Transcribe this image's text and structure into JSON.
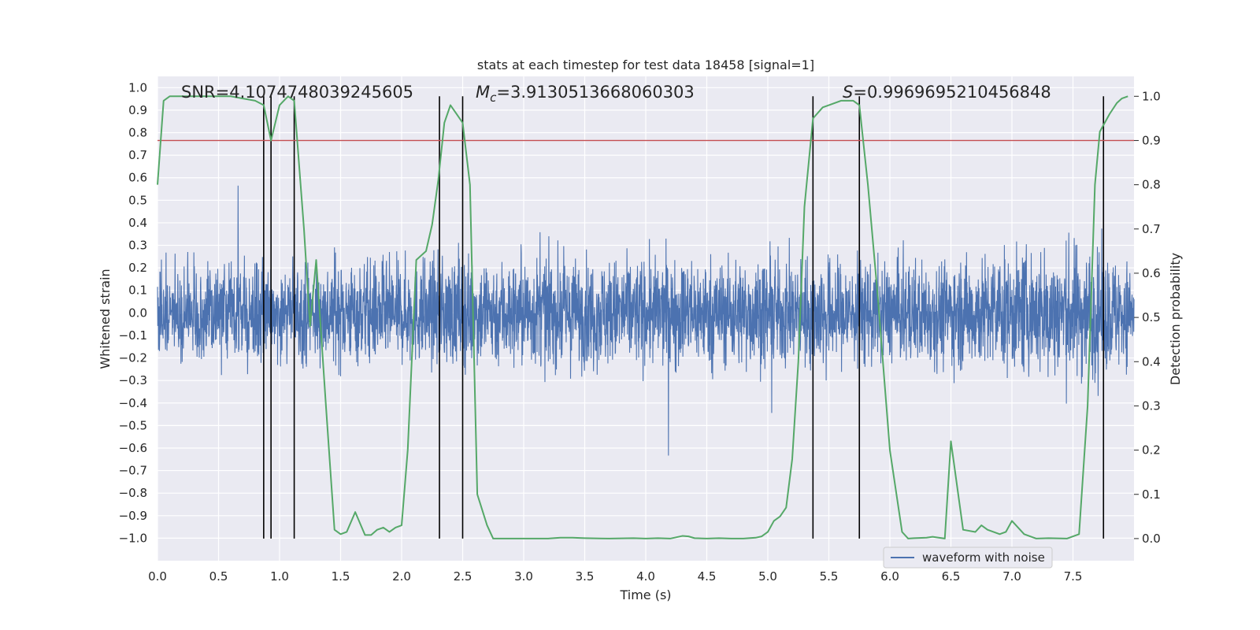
{
  "chart_data": {
    "type": "line",
    "title": "stats at each timestep for test data 18458 [signal=1]",
    "xlabel": "Time (s)",
    "ylabel": "Whitened strain",
    "y2label": "Detection probability",
    "xlim": [
      0.0,
      8.0
    ],
    "ylim": [
      -1.1,
      1.05
    ],
    "y2lim": [
      -0.05,
      1.045
    ],
    "x_ticks": [
      "0.0",
      "0.5",
      "1.0",
      "1.5",
      "2.0",
      "2.5",
      "3.0",
      "3.5",
      "4.0",
      "4.5",
      "5.0",
      "5.5",
      "6.0",
      "6.5",
      "7.0",
      "7.5"
    ],
    "y_ticks": [
      "1.0",
      "0.9",
      "0.8",
      "0.7",
      "0.6",
      "0.5",
      "0.4",
      "0.3",
      "0.2",
      "0.1",
      "0.0",
      "−0.1",
      "−0.2",
      "−0.3",
      "−0.4",
      "−0.5",
      "−0.6",
      "−0.7",
      "−0.8",
      "−0.9",
      "−1.0"
    ],
    "y2_ticks": [
      "1.0",
      "0.9",
      "0.8",
      "0.7",
      "0.6",
      "0.5",
      "0.4",
      "0.3",
      "0.2",
      "0.1",
      "0.0"
    ],
    "annotations": {
      "snr": "SNR=4.1074748039245605",
      "mc_symbol": "M",
      "mc_sub": "c",
      "mc_value": "=3.9130513668060303",
      "s_symbol": "S",
      "s_value": "=0.9969695210456848"
    },
    "legend": {
      "label": "waveform with noise",
      "placement": "lower-right"
    },
    "colors": {
      "waveform": "#4c72b0",
      "probability": "#55a868",
      "threshold": "#c44e52",
      "vlines": "#000000",
      "background": "#eaeaf2",
      "grid": "#ffffff"
    },
    "threshold": 0.9,
    "vlines": [
      0.87,
      0.93,
      1.12,
      2.31,
      2.5,
      5.37,
      5.75,
      7.75
    ],
    "waveform_envelope": {
      "x": [
        0.0,
        0.5,
        1.0,
        1.5,
        2.0,
        2.5,
        3.0,
        3.5,
        4.0,
        4.5,
        5.0,
        5.5,
        6.0,
        6.5,
        7.0,
        7.5,
        8.0
      ],
      "amplitude": [
        0.45,
        0.5,
        0.5,
        0.52,
        0.52,
        0.55,
        0.55,
        0.55,
        0.55,
        0.55,
        0.55,
        0.55,
        0.5,
        0.55,
        0.6,
        0.7,
        0.5
      ]
    },
    "series": [
      {
        "name": "Detection probability",
        "x": [
          0.0,
          0.05,
          0.1,
          0.2,
          0.3,
          0.4,
          0.5,
          0.6,
          0.7,
          0.8,
          0.87,
          0.93,
          1.0,
          1.07,
          1.12,
          1.2,
          1.25,
          1.3,
          1.38,
          1.45,
          1.5,
          1.55,
          1.62,
          1.7,
          1.75,
          1.8,
          1.85,
          1.9,
          1.95,
          2.0,
          2.05,
          2.12,
          2.2,
          2.25,
          2.3,
          2.35,
          2.4,
          2.45,
          2.5,
          2.56,
          2.62,
          2.7,
          2.75,
          2.8,
          2.9,
          3.0,
          3.1,
          3.2,
          3.3,
          3.4,
          3.5,
          3.7,
          3.9,
          4.0,
          4.1,
          4.2,
          4.3,
          4.35,
          4.4,
          4.5,
          4.6,
          4.7,
          4.8,
          4.9,
          4.95,
          5.0,
          5.05,
          5.1,
          5.15,
          5.2,
          5.25,
          5.3,
          5.37,
          5.45,
          5.5,
          5.6,
          5.7,
          5.75,
          5.82,
          5.9,
          6.0,
          6.1,
          6.15,
          6.2,
          6.3,
          6.35,
          6.45,
          6.5,
          6.6,
          6.7,
          6.75,
          6.8,
          6.9,
          6.95,
          7.0,
          7.1,
          7.2,
          7.3,
          7.45,
          7.55,
          7.62,
          7.68,
          7.72,
          7.8,
          7.86,
          7.9,
          7.95
        ],
        "values": [
          0.8,
          0.99,
          1.0,
          1.0,
          1.0,
          1.0,
          1.0,
          1.0,
          0.995,
          0.99,
          0.98,
          0.9,
          0.98,
          1.0,
          0.99,
          0.7,
          0.48,
          0.63,
          0.3,
          0.02,
          0.01,
          0.015,
          0.06,
          0.008,
          0.008,
          0.02,
          0.025,
          0.015,
          0.025,
          0.03,
          0.2,
          0.63,
          0.65,
          0.71,
          0.81,
          0.94,
          0.98,
          0.96,
          0.94,
          0.8,
          0.1,
          0.03,
          0.0,
          0.0,
          0.0,
          0.0,
          0.0,
          0.0,
          0.002,
          0.002,
          0.001,
          0.0,
          0.001,
          0.0,
          0.001,
          0.0,
          0.006,
          0.005,
          0.001,
          0.0,
          0.001,
          0.0,
          0.0,
          0.002,
          0.005,
          0.015,
          0.04,
          0.05,
          0.07,
          0.18,
          0.4,
          0.75,
          0.95,
          0.975,
          0.98,
          0.99,
          0.99,
          0.98,
          0.8,
          0.55,
          0.2,
          0.015,
          0.0,
          0.001,
          0.002,
          0.004,
          0.0,
          0.22,
          0.02,
          0.015,
          0.03,
          0.02,
          0.01,
          0.015,
          0.04,
          0.01,
          0.0,
          0.001,
          0.0,
          0.01,
          0.3,
          0.8,
          0.92,
          0.96,
          0.985,
          0.995,
          1.0
        ]
      }
    ]
  }
}
